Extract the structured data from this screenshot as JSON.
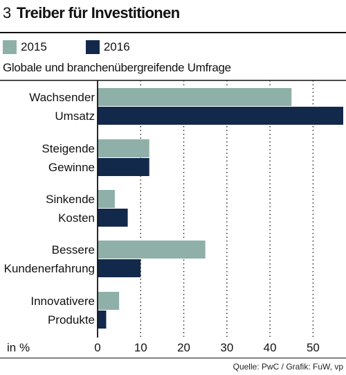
{
  "header": {
    "figure_number": "3",
    "title": "Treiber für Investitionen",
    "subtitle": "Globale und branchenübergreifende Umfrage"
  },
  "footer": {
    "source": "Quelle: PwC / Grafik: FuW, vp"
  },
  "colors": {
    "series_2015": "#8fb0a8",
    "series_2016": "#13294b",
    "grid": "#222222"
  },
  "chart_data": {
    "type": "bar",
    "orientation": "horizontal",
    "categories": [
      [
        "Wachsender",
        "Umsatz"
      ],
      [
        "Steigende",
        "Gewinne"
      ],
      [
        "Sinkende",
        "Kosten"
      ],
      [
        "Bessere",
        "Kundenerfahrung"
      ],
      [
        "Innovativere",
        "Produkte"
      ]
    ],
    "series": [
      {
        "name": "2015",
        "values": [
          45,
          12,
          4,
          25,
          5
        ]
      },
      {
        "name": "2016",
        "values": [
          57,
          12,
          7,
          10,
          2
        ]
      }
    ],
    "xlabel": "in %",
    "xlim": [
      0,
      57
    ],
    "xticks": [
      0,
      10,
      20,
      30,
      40,
      50
    ],
    "grid": true,
    "legend_position": "top-left"
  }
}
